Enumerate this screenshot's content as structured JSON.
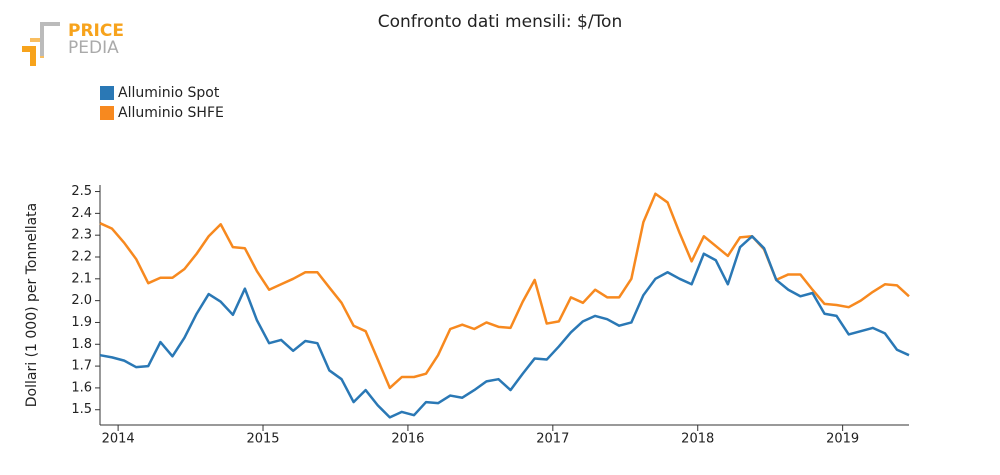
{
  "logo": {
    "top": "PRICE",
    "bottom": "PEDIA"
  },
  "chart_data": {
    "type": "line",
    "title": "Confronto dati mensili: $/Ton",
    "y_label": "Dollari (1 000) per Tonnellata",
    "x": [
      2013.875,
      2013.958,
      2014.042,
      2014.125,
      2014.208,
      2014.292,
      2014.375,
      2014.458,
      2014.542,
      2014.625,
      2014.708,
      2014.792,
      2014.875,
      2014.958,
      2015.042,
      2015.125,
      2015.208,
      2015.292,
      2015.375,
      2015.458,
      2015.542,
      2015.625,
      2015.708,
      2015.792,
      2015.875,
      2015.958,
      2016.042,
      2016.125,
      2016.208,
      2016.292,
      2016.375,
      2016.458,
      2016.542,
      2016.625,
      2016.708,
      2016.792,
      2016.875,
      2016.958,
      2017.042,
      2017.125,
      2017.208,
      2017.292,
      2017.375,
      2017.458,
      2017.542,
      2017.625,
      2017.708,
      2017.792,
      2017.875,
      2017.958,
      2018.042,
      2018.125,
      2018.208,
      2018.292,
      2018.375,
      2018.458,
      2018.542,
      2018.625,
      2018.708,
      2018.792,
      2018.875,
      2018.958,
      2019.042,
      2019.125,
      2019.208,
      2019.292,
      2019.375,
      2019.458
    ],
    "series": [
      {
        "name": "Alluminio Spot",
        "color": "#2a78b5",
        "values": [
          1.75,
          1.74,
          1.725,
          1.695,
          1.7,
          1.81,
          1.745,
          1.83,
          1.94,
          2.03,
          1.995,
          1.935,
          2.055,
          1.91,
          1.805,
          1.82,
          1.77,
          1.815,
          1.805,
          1.68,
          1.64,
          1.535,
          1.59,
          1.52,
          1.465,
          1.49,
          1.475,
          1.535,
          1.53,
          1.565,
          1.555,
          1.59,
          1.63,
          1.64,
          1.59,
          1.665,
          1.735,
          1.73,
          1.79,
          1.855,
          1.905,
          1.93,
          1.915,
          1.885,
          1.9,
          2.025,
          2.1,
          2.13,
          2.1,
          2.075,
          2.215,
          2.185,
          2.075,
          2.245,
          2.295,
          2.24,
          2.095,
          2.05,
          2.02,
          2.035,
          1.94,
          1.93,
          1.845,
          1.86,
          1.875,
          1.85,
          1.775,
          1.75
        ]
      },
      {
        "name": "Alluminio SHFE",
        "color": "#f7891f",
        "values": [
          2.355,
          2.33,
          2.265,
          2.19,
          2.08,
          2.105,
          2.105,
          2.145,
          2.215,
          2.295,
          2.35,
          2.245,
          2.24,
          2.135,
          2.05,
          2.075,
          2.1,
          2.13,
          2.13,
          2.06,
          1.99,
          1.885,
          1.86,
          1.73,
          1.6,
          1.65,
          1.65,
          1.665,
          1.75,
          1.87,
          1.89,
          1.87,
          1.9,
          1.88,
          1.875,
          1.995,
          2.095,
          1.895,
          1.905,
          2.015,
          1.99,
          2.05,
          2.015,
          2.015,
          2.1,
          2.36,
          2.49,
          2.45,
          2.31,
          2.18,
          2.295,
          2.25,
          2.205,
          2.29,
          2.295,
          2.235,
          2.095,
          2.12,
          2.12,
          2.05,
          1.985,
          1.98,
          1.97,
          2.0,
          2.04,
          2.075,
          2.07,
          2.02
        ]
      }
    ],
    "xlim": [
      2013.875,
      2019.458
    ],
    "xticks": [
      2014,
      2015,
      2016,
      2017,
      2018,
      2019
    ],
    "ylim": [
      1.43,
      2.53
    ],
    "yticks": [
      1.5,
      1.6,
      1.7,
      1.8,
      1.9,
      {
        "value": 2,
        "label": "2.0"
      },
      2.1,
      2.2,
      2.3,
      2.4,
      2.5
    ],
    "legend": "top-left"
  }
}
